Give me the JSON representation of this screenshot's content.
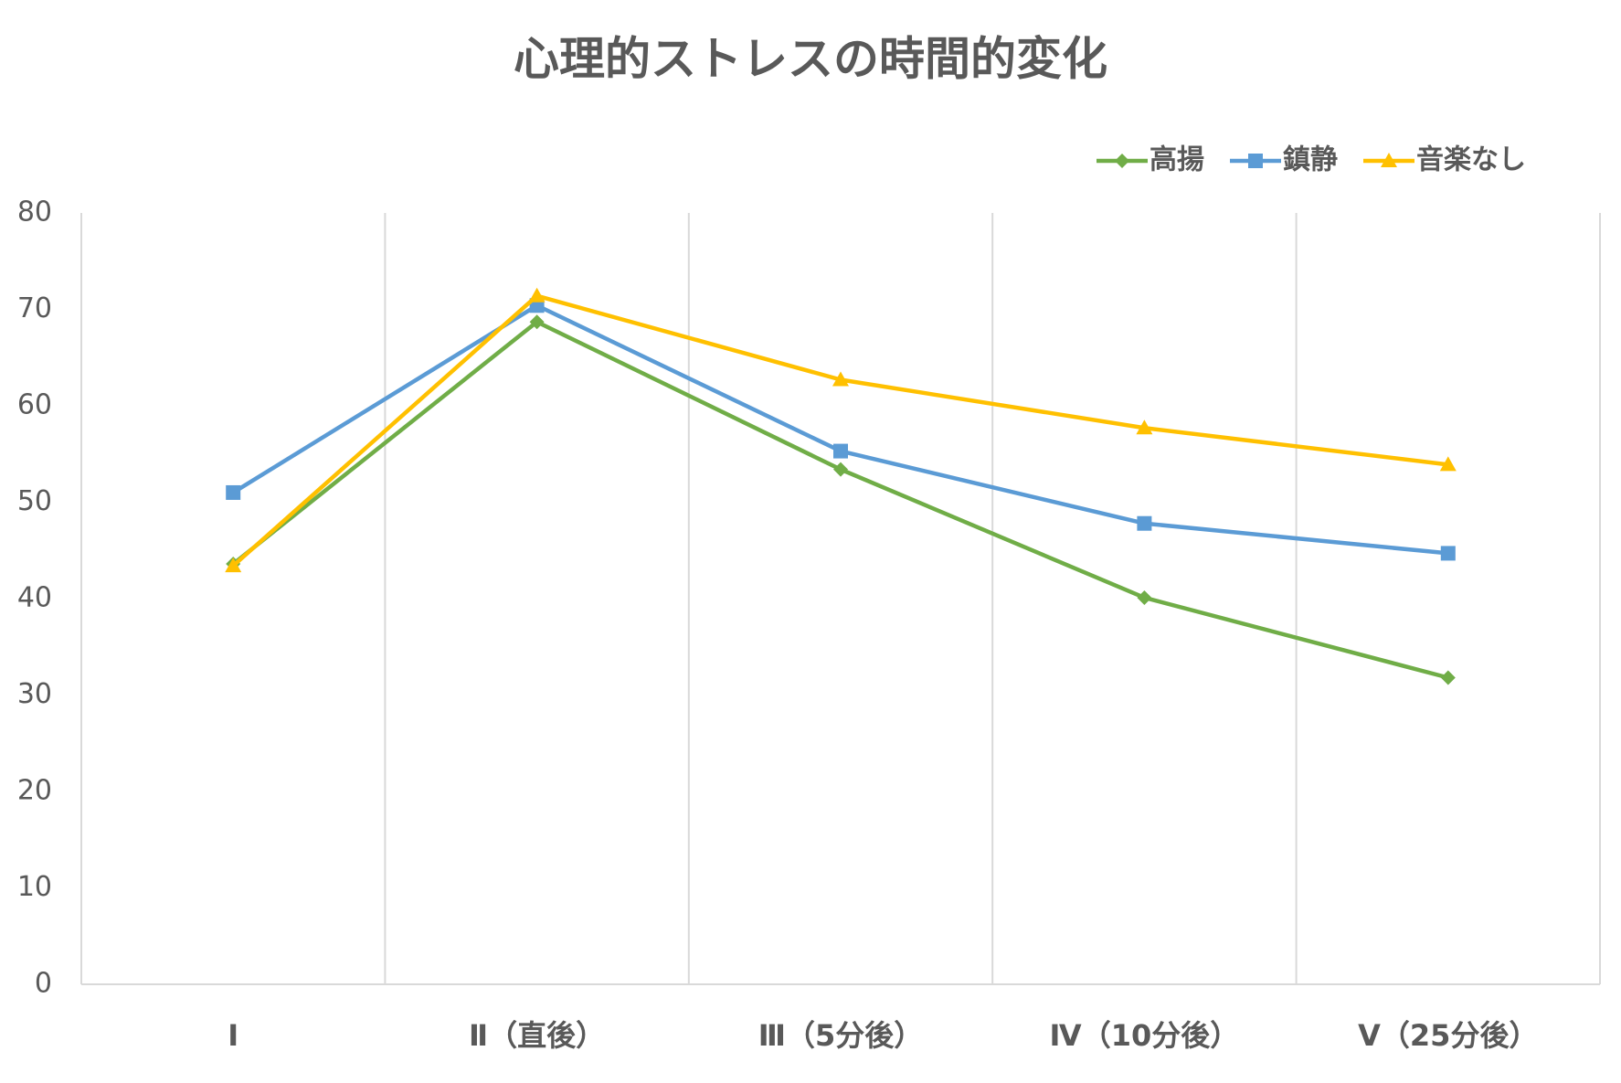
{
  "chart_data": {
    "type": "line",
    "title": "心理的ストレスの時間的変化",
    "categories": [
      "Ⅰ",
      "Ⅱ（直後）",
      "Ⅲ（5分後）",
      "Ⅳ（10分後）",
      "Ⅴ（25分後）"
    ],
    "series": [
      {
        "name": "高揚",
        "color": "#70ad47",
        "marker": "diamond",
        "values": [
          43.6,
          68.7,
          53.4,
          40.1,
          31.8
        ]
      },
      {
        "name": "鎮静",
        "color": "#5b9bd5",
        "marker": "square",
        "values": [
          51.0,
          70.4,
          55.3,
          47.8,
          44.7
        ]
      },
      {
        "name": "音楽なし",
        "color": "#ffc000",
        "marker": "triangle",
        "values": [
          43.4,
          71.4,
          62.7,
          57.7,
          53.9
        ]
      }
    ],
    "ylim": [
      0,
      80
    ],
    "yticks": [
      0,
      10,
      20,
      30,
      40,
      50,
      60,
      70,
      80
    ],
    "grid": "x",
    "legend": "top-right"
  }
}
